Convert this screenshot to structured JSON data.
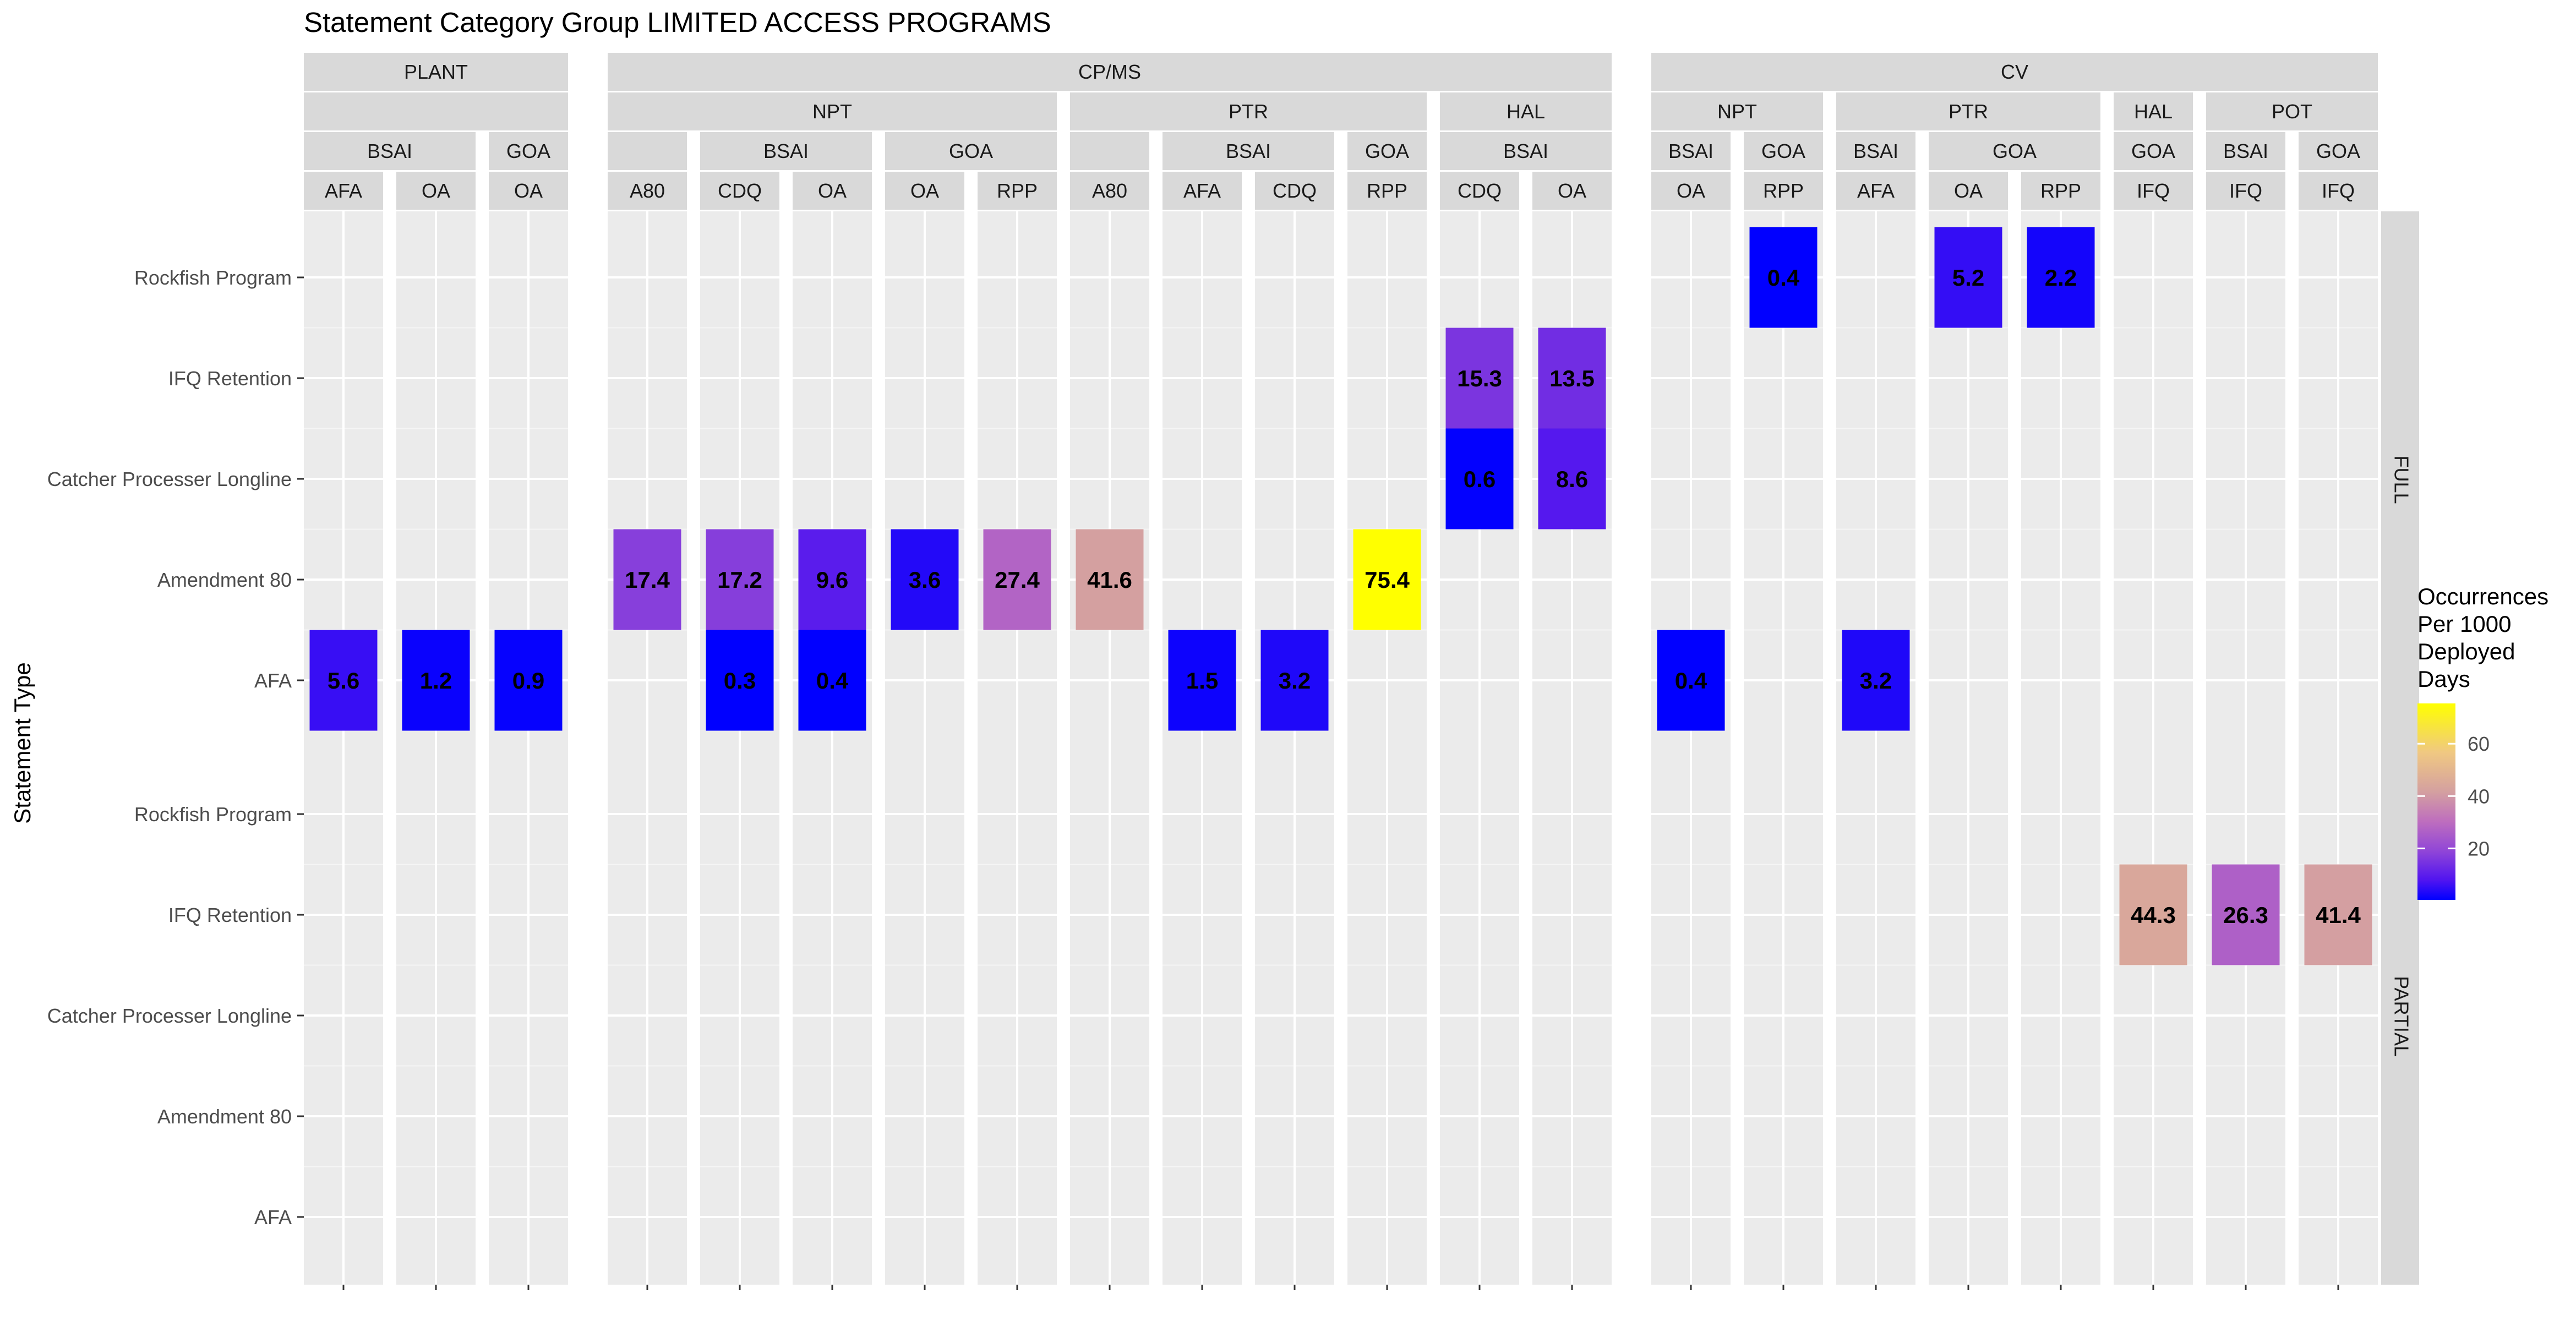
{
  "title": "Statement Category Group LIMITED ACCESS PROGRAMS",
  "ylabel": "Statement Type",
  "chart_data": {
    "type": "heatmap",
    "title": "Statement Category Group LIMITED ACCESS PROGRAMS",
    "ylabel": "Statement Type",
    "xlabel": "",
    "rows": [
      "Rockfish Program",
      "IFQ Retention",
      "Catcher Processer Longline",
      "Amendment 80",
      "AFA"
    ],
    "panels": [
      "FULL",
      "PARTIAL"
    ],
    "groups": [
      {
        "label": "PLANT",
        "subgroups": [
          {
            "label": "",
            "regions": [
              {
                "label": "BSAI",
                "columns": [
                  "AFA",
                  "OA"
                ]
              },
              {
                "label": "GOA",
                "columns": [
                  "OA"
                ]
              }
            ]
          }
        ]
      },
      {
        "label": "CP/MS",
        "subgroups": [
          {
            "label": "NPT",
            "regions": [
              {
                "label": "",
                "columns": [
                  "A80"
                ]
              },
              {
                "label": "BSAI",
                "columns": [
                  "CDQ",
                  "OA"
                ]
              },
              {
                "label": "GOA",
                "columns": [
                  "OA",
                  "RPP"
                ]
              }
            ]
          },
          {
            "label": "PTR",
            "regions": [
              {
                "label": "",
                "columns": [
                  "A80"
                ]
              },
              {
                "label": "BSAI",
                "columns": [
                  "AFA",
                  "CDQ"
                ]
              },
              {
                "label": "GOA",
                "columns": [
                  "RPP"
                ]
              }
            ]
          },
          {
            "label": "HAL",
            "regions": [
              {
                "label": "BSAI",
                "columns": [
                  "CDQ",
                  "OA"
                ]
              }
            ]
          }
        ]
      },
      {
        "label": "CV",
        "subgroups": [
          {
            "label": "NPT",
            "regions": [
              {
                "label": "BSAI",
                "columns": [
                  "OA"
                ]
              },
              {
                "label": "GOA",
                "columns": [
                  "RPP"
                ]
              }
            ]
          },
          {
            "label": "PTR",
            "regions": [
              {
                "label": "BSAI",
                "columns": [
                  "AFA"
                ]
              },
              {
                "label": "GOA",
                "columns": [
                  "OA",
                  "RPP"
                ]
              }
            ]
          },
          {
            "label": "HAL",
            "regions": [
              {
                "label": "GOA",
                "columns": [
                  "IFQ"
                ]
              }
            ]
          },
          {
            "label": "POT",
            "regions": [
              {
                "label": "BSAI",
                "columns": [
                  "IFQ"
                ]
              },
              {
                "label": "GOA",
                "columns": [
                  "IFQ"
                ]
              }
            ]
          }
        ]
      }
    ],
    "cells": [
      {
        "panel": "FULL",
        "row": "AFA",
        "col": 0,
        "value": 5.6,
        "label": "5.6"
      },
      {
        "panel": "FULL",
        "row": "AFA",
        "col": 1,
        "value": 1.2,
        "label": "1.2"
      },
      {
        "panel": "FULL",
        "row": "AFA",
        "col": 2,
        "value": 0.9,
        "label": "0.9"
      },
      {
        "panel": "FULL",
        "row": "Amendment 80",
        "col": 3,
        "value": 17.4,
        "label": "17.4"
      },
      {
        "panel": "FULL",
        "row": "Amendment 80",
        "col": 4,
        "value": 17.2,
        "label": "17.2"
      },
      {
        "panel": "FULL",
        "row": "AFA",
        "col": 4,
        "value": 0.3,
        "label": "0.3"
      },
      {
        "panel": "FULL",
        "row": "Amendment 80",
        "col": 5,
        "value": 9.6,
        "label": "9.6"
      },
      {
        "panel": "FULL",
        "row": "AFA",
        "col": 5,
        "value": 0.4,
        "label": "0.4"
      },
      {
        "panel": "FULL",
        "row": "Amendment 80",
        "col": 6,
        "value": 3.6,
        "label": "3.6"
      },
      {
        "panel": "FULL",
        "row": "Amendment 80",
        "col": 7,
        "value": 27.4,
        "label": "27.4"
      },
      {
        "panel": "FULL",
        "row": "Amendment 80",
        "col": 8,
        "value": 41.6,
        "label": "41.6"
      },
      {
        "panel": "FULL",
        "row": "AFA",
        "col": 9,
        "value": 1.5,
        "label": "1.5"
      },
      {
        "panel": "FULL",
        "row": "AFA",
        "col": 10,
        "value": 3.2,
        "label": "3.2"
      },
      {
        "panel": "FULL",
        "row": "Amendment 80",
        "col": 11,
        "value": 75.4,
        "label": "75.4"
      },
      {
        "panel": "FULL",
        "row": "IFQ Retention",
        "col": 12,
        "value": 15.3,
        "label": "15.3"
      },
      {
        "panel": "FULL",
        "row": "Catcher Processer Longline",
        "col": 12,
        "value": 0.6,
        "label": "0.6"
      },
      {
        "panel": "FULL",
        "row": "IFQ Retention",
        "col": 13,
        "value": 13.5,
        "label": "13.5"
      },
      {
        "panel": "FULL",
        "row": "Catcher Processer Longline",
        "col": 13,
        "value": 8.6,
        "label": "8.6"
      },
      {
        "panel": "FULL",
        "row": "AFA",
        "col": 14,
        "value": 0.4,
        "label": "0.4"
      },
      {
        "panel": "FULL",
        "row": "Rockfish Program",
        "col": 15,
        "value": 0.4,
        "label": "0.4"
      },
      {
        "panel": "FULL",
        "row": "AFA",
        "col": 16,
        "value": 3.2,
        "label": "3.2"
      },
      {
        "panel": "FULL",
        "row": "Rockfish Program",
        "col": 17,
        "value": 5.2,
        "label": "5.2"
      },
      {
        "panel": "FULL",
        "row": "Rockfish Program",
        "col": 18,
        "value": 2.2,
        "label": "2.2"
      },
      {
        "panel": "PARTIAL",
        "row": "IFQ Retention",
        "col": 19,
        "value": 44.3,
        "label": "44.3"
      },
      {
        "panel": "PARTIAL",
        "row": "IFQ Retention",
        "col": 20,
        "value": 26.3,
        "label": "26.3"
      },
      {
        "panel": "PARTIAL",
        "row": "IFQ Retention",
        "col": 21,
        "value": 41.4,
        "label": "41.4"
      }
    ],
    "legend": {
      "title_lines": [
        "Occurrences",
        "Per 1000",
        "Deployed",
        "Days"
      ],
      "ticks": [
        20,
        40,
        60
      ],
      "tick_labels": [
        "20",
        "40",
        "60"
      ],
      "range": [
        0.3,
        75.4
      ],
      "colors": [
        "#0000ff",
        "#9b4fd3",
        "#d4a99a",
        "#ffff00"
      ],
      "position": "right"
    },
    "grid": true
  }
}
